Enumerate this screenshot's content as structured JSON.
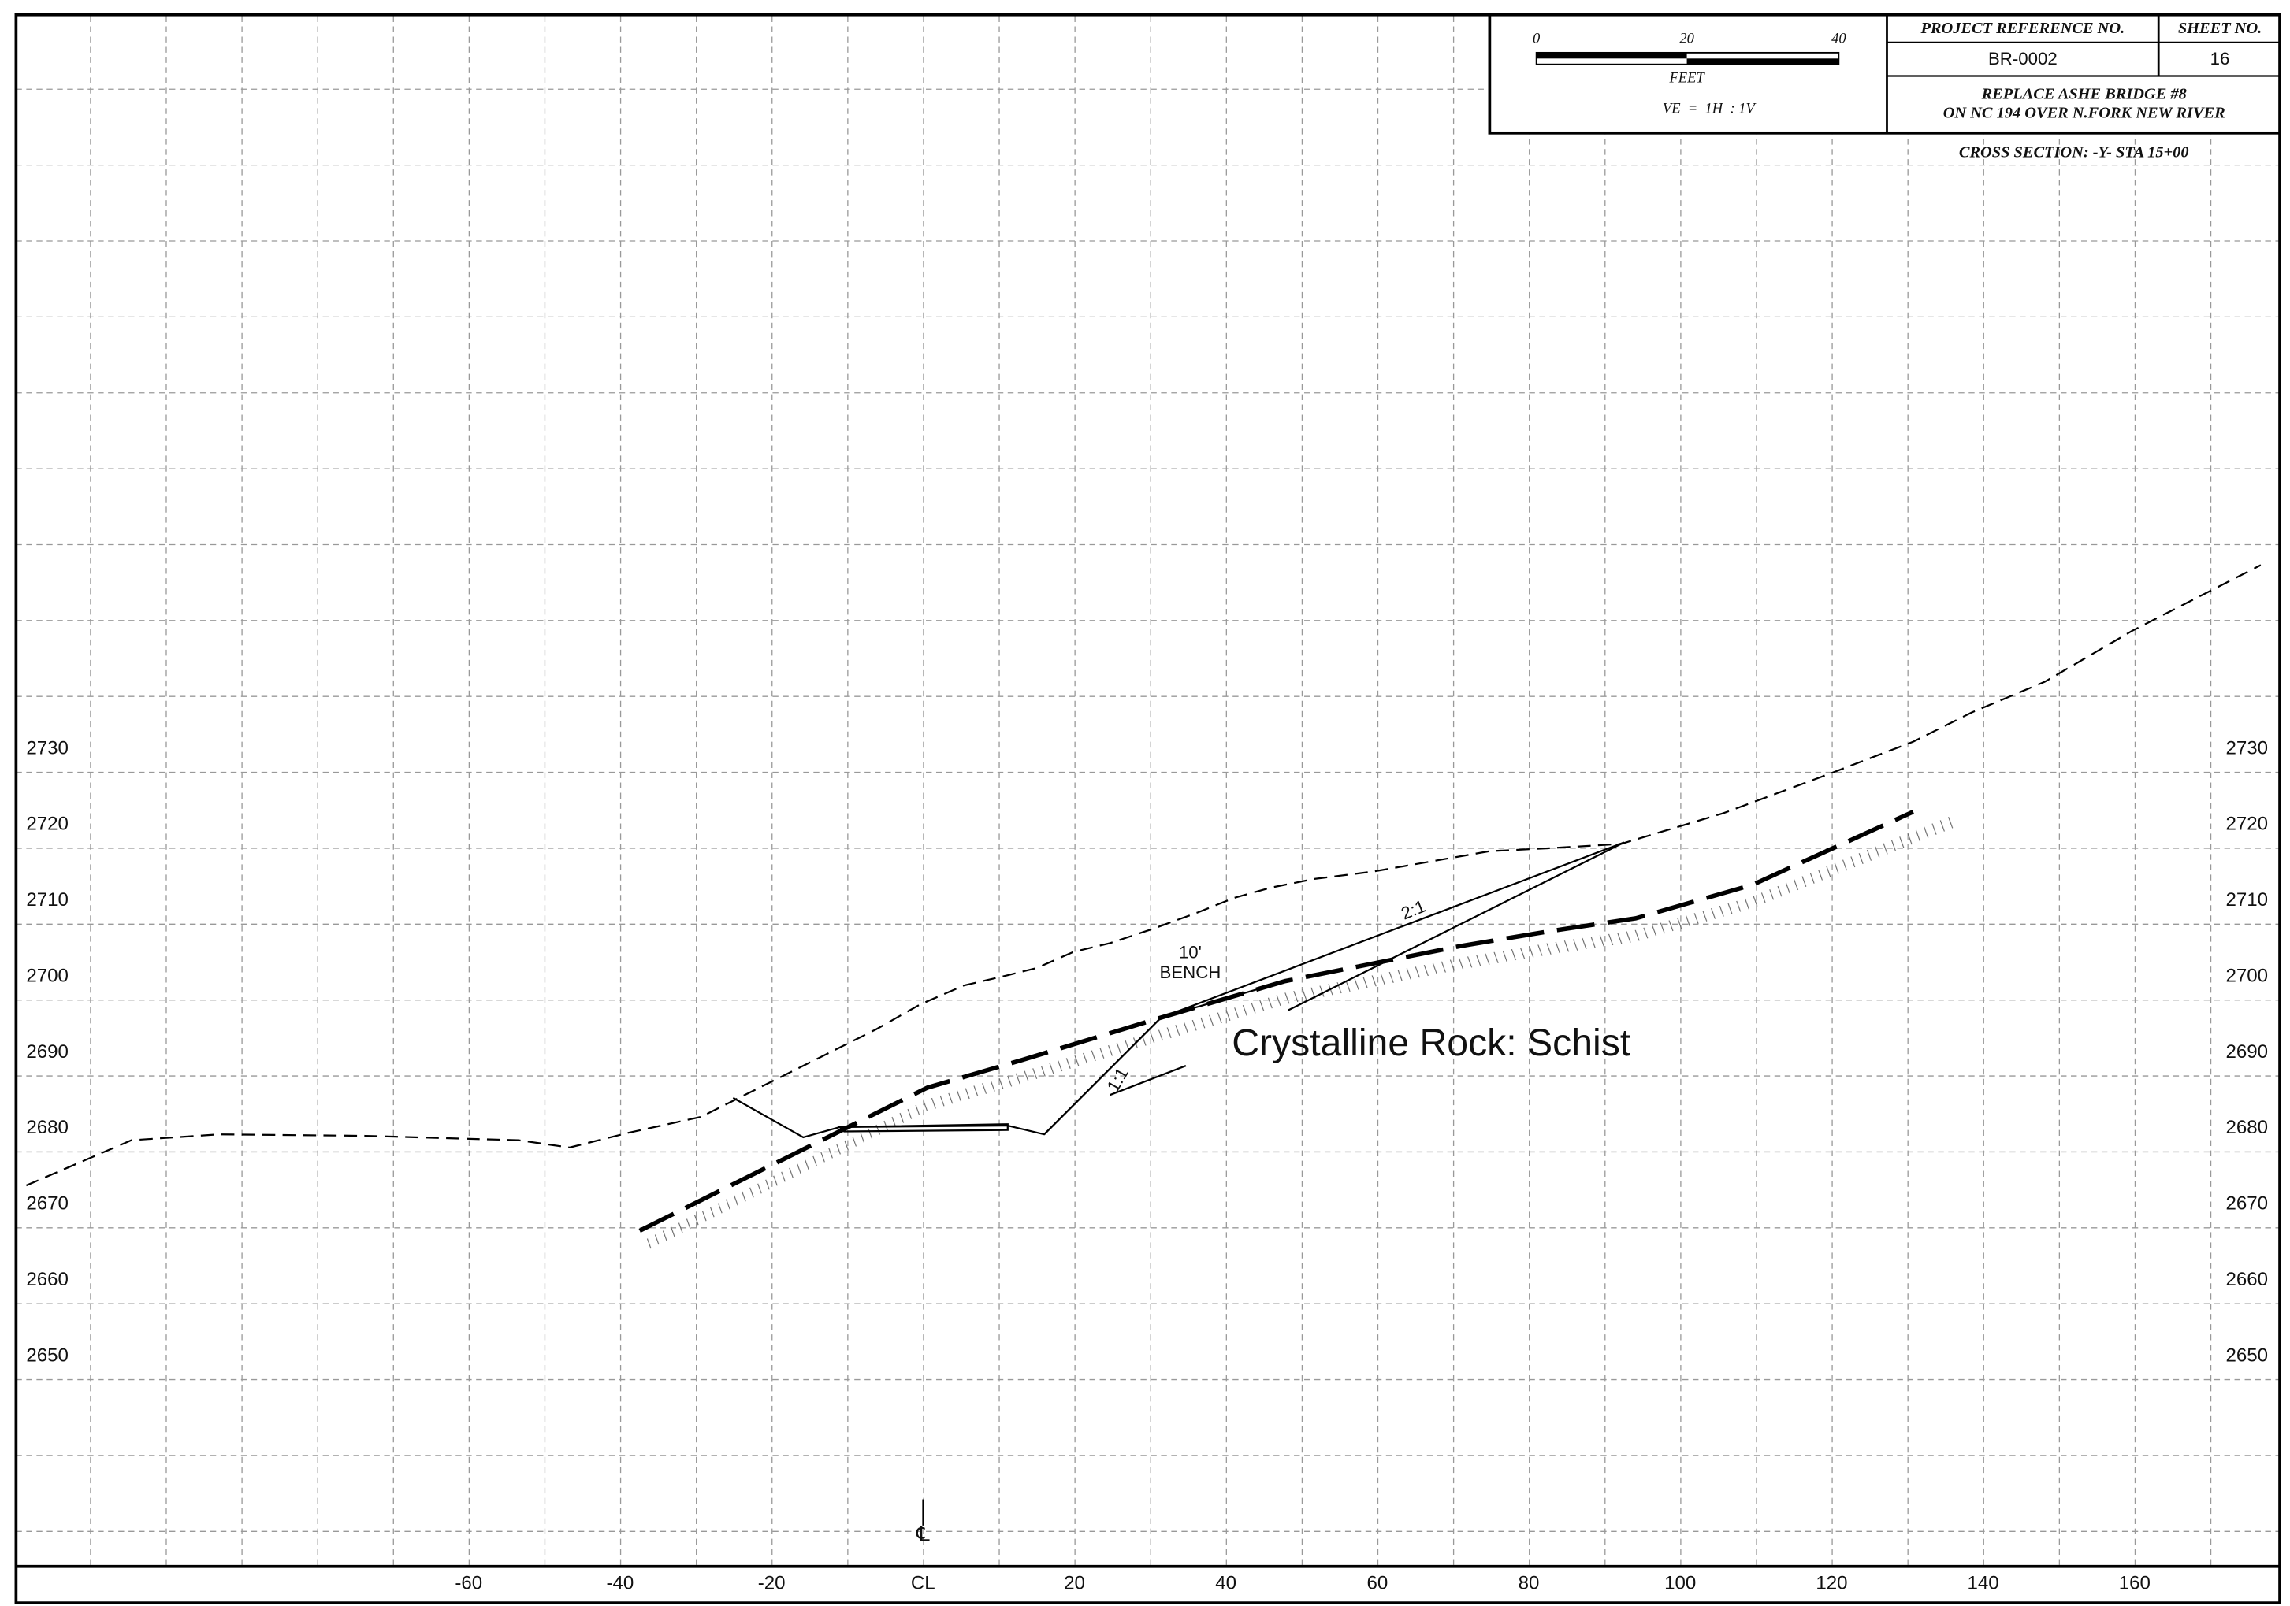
{
  "title_block": {
    "scale": {
      "ticks": [
        0,
        20,
        40
      ],
      "unit": "FEET",
      "ve": "VE  =  1H  : 1V"
    },
    "project_reference_header": "PROJECT REFERENCE NO.",
    "sheet_header": "SHEET NO.",
    "project_reference": "BR-0002",
    "sheet": "16",
    "description": [
      "REPLACE ASHE BRIDGE #8",
      "ON NC 194 OVER N.FORK NEW RIVER"
    ]
  },
  "section_title": "CROSS SECTION: -Y- STA 15+00",
  "axes": {
    "x_ticks": [
      -60,
      -40,
      -20,
      {
        "value": 0,
        "label": "CL"
      },
      20,
      40,
      60,
      80,
      100,
      120,
      140,
      160
    ],
    "y_ticks": [
      2650,
      2660,
      2670,
      2680,
      2690,
      2700,
      2710,
      2720,
      2730
    ]
  },
  "annotations": {
    "bench": [
      "10'",
      "BENCH"
    ],
    "slope_upper": "2:1",
    "slope_lower": "1:1",
    "rock": "Crystalline Rock: Schist",
    "centerline": "℄"
  }
}
